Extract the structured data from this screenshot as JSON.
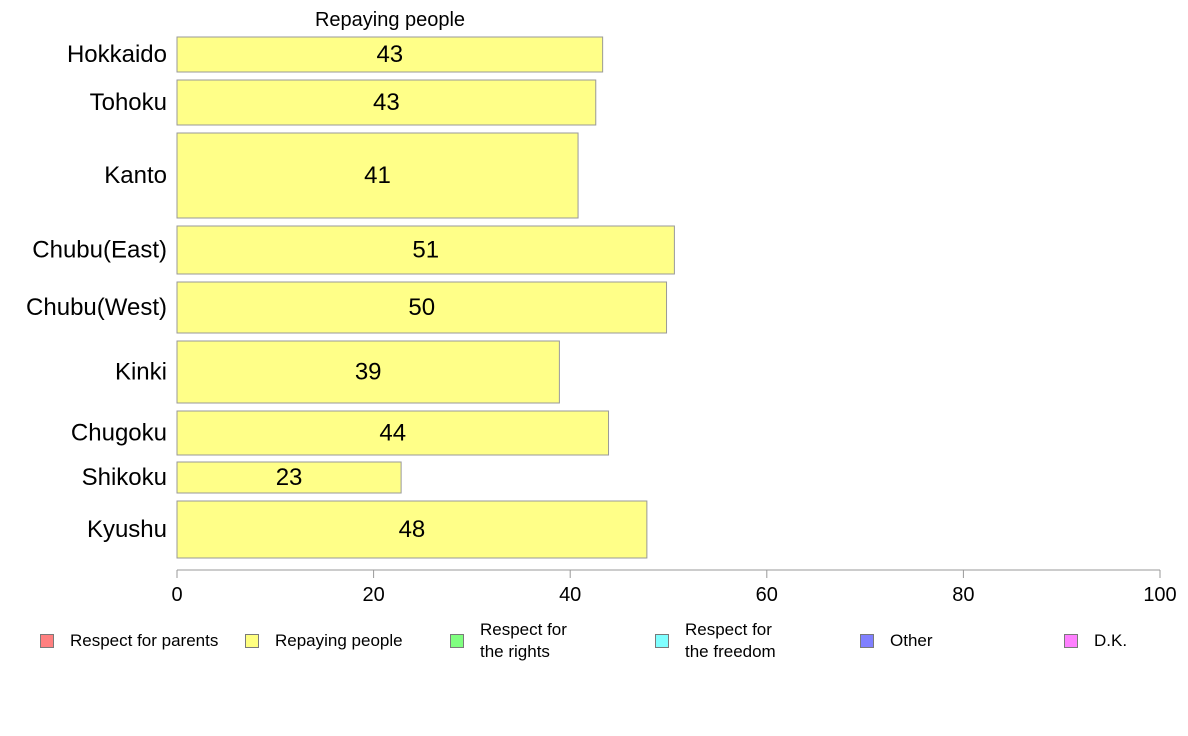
{
  "chart_data": {
    "type": "bar",
    "orientation": "horizontal",
    "title": "Repaying people",
    "categories": [
      "Hokkaido",
      "Tohoku",
      "Kanto",
      "Chubu(East)",
      "Chubu(West)",
      "Kinki",
      "Chugoku",
      "Shikoku",
      "Kyushu"
    ],
    "values": [
      43,
      43,
      41,
      51,
      50,
      39,
      44,
      23,
      48
    ],
    "bar_lengths": [
      43.3,
      42.6,
      40.8,
      50.6,
      49.8,
      38.9,
      43.9,
      22.8,
      47.8
    ],
    "xlim": [
      0,
      100
    ],
    "xticks": [
      0,
      20,
      40,
      60,
      80,
      100
    ],
    "xlabel": "",
    "ylabel": "",
    "grid": false,
    "bar_color": "#ffff88",
    "legend_position": "bottom",
    "legend": [
      {
        "label": "Respect for parents",
        "color": "#ff8080"
      },
      {
        "label": "Repaying people",
        "color": "#ffff80"
      },
      {
        "label": "Respect for\nthe rights",
        "color": "#80ff80"
      },
      {
        "label": "Respect for\nthe freedom",
        "color": "#80ffff"
      },
      {
        "label": "Other",
        "color": "#8080ff"
      },
      {
        "label": "D.K.",
        "color": "#ff80ff"
      }
    ]
  }
}
